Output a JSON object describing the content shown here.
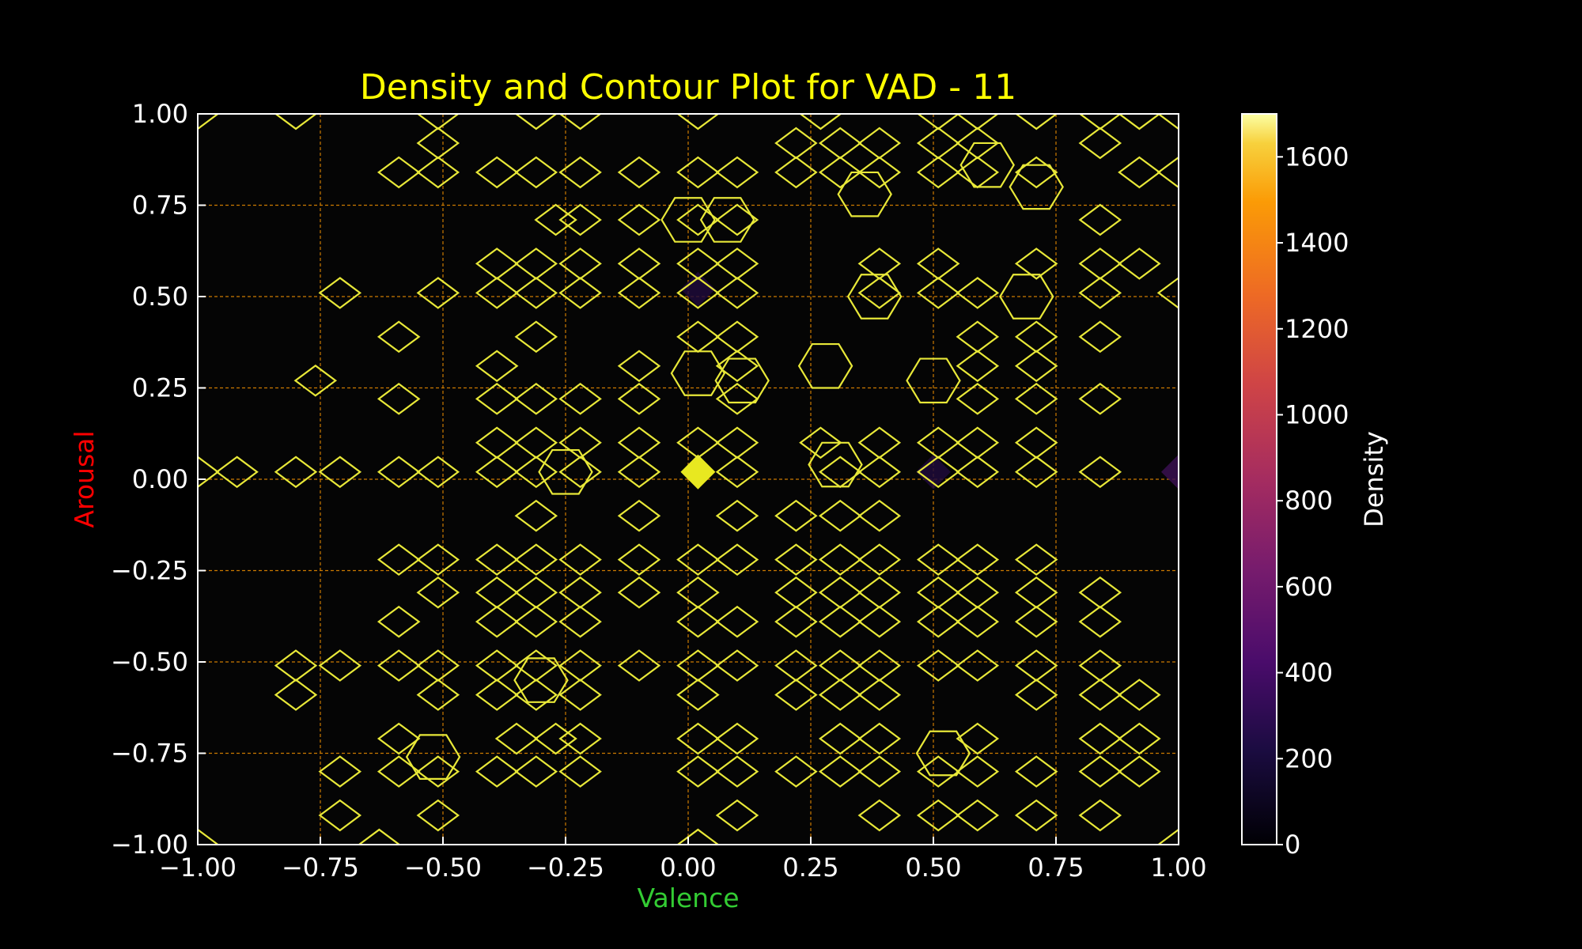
{
  "chart_data": {
    "type": "heatmap",
    "title": "Density and Contour Plot for VAD - 11",
    "xlabel": "Valence",
    "ylabel": "Arousal",
    "xlim": [
      -1.0,
      1.0
    ],
    "ylim": [
      -1.0,
      1.0
    ],
    "x_ticks": [
      "−1.00",
      "−0.75",
      "−0.50",
      "−0.25",
      "0.00",
      "0.25",
      "0.50",
      "0.75",
      "1.00"
    ],
    "y_ticks": [
      "−1.00",
      "−0.75",
      "−0.50",
      "−0.25",
      "0.00",
      "0.25",
      "0.50",
      "0.75",
      "1.00"
    ],
    "grid": true,
    "colorbar": {
      "label": "Density",
      "colormap": "inferno",
      "range": [
        0,
        1700
      ],
      "ticks": [
        "0",
        "200",
        "400",
        "600",
        "800",
        "1000",
        "1200",
        "1400",
        "1600"
      ]
    },
    "colors": {
      "background": "#000000",
      "title": "#ffff00",
      "xlabel": "#33cc33",
      "ylabel": "#ff0000",
      "grid": "#cc7a00",
      "contour": "#e8e838"
    },
    "density_peaks": [
      {
        "x": 0.02,
        "y": 0.02,
        "density": 1700
      },
      {
        "x": 1.0,
        "y": 0.02,
        "density": 520
      },
      {
        "x": 0.5,
        "y": 0.02,
        "density": 330
      },
      {
        "x": 0.02,
        "y": 0.52,
        "density": 300
      }
    ],
    "contour_cells": [
      [
        -1.0,
        -1.0
      ],
      [
        -0.63,
        -1.0
      ],
      [
        0.02,
        -1.0
      ],
      [
        1.0,
        -1.0
      ],
      [
        -0.71,
        -0.92
      ],
      [
        -0.51,
        -0.92
      ],
      [
        0.1,
        -0.92
      ],
      [
        0.39,
        -0.92
      ],
      [
        0.51,
        -0.92
      ],
      [
        0.59,
        -0.92
      ],
      [
        0.71,
        -0.92
      ],
      [
        0.84,
        -0.92
      ],
      [
        -0.71,
        -0.8
      ],
      [
        -0.59,
        -0.8
      ],
      [
        -0.51,
        -0.8
      ],
      [
        -0.39,
        -0.8
      ],
      [
        -0.31,
        -0.8
      ],
      [
        -0.22,
        -0.8
      ],
      [
        0.02,
        -0.8
      ],
      [
        0.1,
        -0.8
      ],
      [
        0.22,
        -0.8
      ],
      [
        0.31,
        -0.8
      ],
      [
        0.39,
        -0.8
      ],
      [
        0.51,
        -0.8
      ],
      [
        0.59,
        -0.8
      ],
      [
        0.71,
        -0.8
      ],
      [
        0.84,
        -0.8
      ],
      [
        0.92,
        -0.8
      ],
      [
        -0.59,
        -0.71
      ],
      [
        -0.35,
        -0.71
      ],
      [
        -0.27,
        -0.71
      ],
      [
        -0.22,
        -0.71
      ],
      [
        0.02,
        -0.71
      ],
      [
        0.1,
        -0.71
      ],
      [
        0.31,
        -0.71
      ],
      [
        0.39,
        -0.71
      ],
      [
        0.59,
        -0.71
      ],
      [
        0.84,
        -0.71
      ],
      [
        0.92,
        -0.71
      ],
      [
        -0.8,
        -0.59
      ],
      [
        -0.51,
        -0.59
      ],
      [
        -0.39,
        -0.59
      ],
      [
        -0.31,
        -0.59
      ],
      [
        -0.22,
        -0.59
      ],
      [
        0.02,
        -0.59
      ],
      [
        0.22,
        -0.59
      ],
      [
        0.31,
        -0.59
      ],
      [
        0.39,
        -0.59
      ],
      [
        0.71,
        -0.59
      ],
      [
        0.84,
        -0.59
      ],
      [
        0.92,
        -0.59
      ],
      [
        -0.8,
        -0.51
      ],
      [
        -0.71,
        -0.51
      ],
      [
        -0.59,
        -0.51
      ],
      [
        -0.51,
        -0.51
      ],
      [
        -0.39,
        -0.51
      ],
      [
        -0.31,
        -0.51
      ],
      [
        -0.22,
        -0.51
      ],
      [
        -0.1,
        -0.51
      ],
      [
        0.02,
        -0.51
      ],
      [
        0.1,
        -0.51
      ],
      [
        0.22,
        -0.51
      ],
      [
        0.31,
        -0.51
      ],
      [
        0.39,
        -0.51
      ],
      [
        0.51,
        -0.51
      ],
      [
        0.59,
        -0.51
      ],
      [
        0.71,
        -0.51
      ],
      [
        0.84,
        -0.51
      ],
      [
        -0.59,
        -0.39
      ],
      [
        -0.39,
        -0.39
      ],
      [
        -0.31,
        -0.39
      ],
      [
        -0.22,
        -0.39
      ],
      [
        0.02,
        -0.39
      ],
      [
        0.1,
        -0.39
      ],
      [
        0.22,
        -0.39
      ],
      [
        0.31,
        -0.39
      ],
      [
        0.39,
        -0.39
      ],
      [
        0.51,
        -0.39
      ],
      [
        0.59,
        -0.39
      ],
      [
        0.71,
        -0.39
      ],
      [
        0.84,
        -0.39
      ],
      [
        -0.51,
        -0.31
      ],
      [
        -0.39,
        -0.31
      ],
      [
        -0.31,
        -0.31
      ],
      [
        -0.22,
        -0.31
      ],
      [
        -0.1,
        -0.31
      ],
      [
        0.02,
        -0.31
      ],
      [
        0.22,
        -0.31
      ],
      [
        0.31,
        -0.31
      ],
      [
        0.39,
        -0.31
      ],
      [
        0.51,
        -0.31
      ],
      [
        0.59,
        -0.31
      ],
      [
        0.71,
        -0.31
      ],
      [
        0.84,
        -0.31
      ],
      [
        -0.59,
        -0.22
      ],
      [
        -0.51,
        -0.22
      ],
      [
        -0.39,
        -0.22
      ],
      [
        -0.31,
        -0.22
      ],
      [
        -0.22,
        -0.22
      ],
      [
        -0.1,
        -0.22
      ],
      [
        0.02,
        -0.22
      ],
      [
        0.1,
        -0.22
      ],
      [
        0.22,
        -0.22
      ],
      [
        0.31,
        -0.22
      ],
      [
        0.39,
        -0.22
      ],
      [
        0.51,
        -0.22
      ],
      [
        0.59,
        -0.22
      ],
      [
        0.71,
        -0.22
      ],
      [
        -0.31,
        -0.1
      ],
      [
        -0.1,
        -0.1
      ],
      [
        0.1,
        -0.1
      ],
      [
        0.22,
        -0.1
      ],
      [
        0.31,
        -0.1
      ],
      [
        0.39,
        -0.1
      ],
      [
        -1.0,
        0.02
      ],
      [
        -0.92,
        0.02
      ],
      [
        -0.8,
        0.02
      ],
      [
        -0.71,
        0.02
      ],
      [
        -0.59,
        0.02
      ],
      [
        -0.51,
        0.02
      ],
      [
        -0.39,
        0.02
      ],
      [
        -0.31,
        0.02
      ],
      [
        -0.22,
        0.02
      ],
      [
        -0.1,
        0.02
      ],
      [
        0.1,
        0.02
      ],
      [
        0.31,
        0.02
      ],
      [
        0.39,
        0.02
      ],
      [
        0.51,
        0.02
      ],
      [
        0.59,
        0.02
      ],
      [
        0.71,
        0.02
      ],
      [
        0.84,
        0.02
      ],
      [
        -0.39,
        0.1
      ],
      [
        -0.31,
        0.1
      ],
      [
        -0.22,
        0.1
      ],
      [
        -0.1,
        0.1
      ],
      [
        0.02,
        0.1
      ],
      [
        0.1,
        0.1
      ],
      [
        0.27,
        0.1
      ],
      [
        0.39,
        0.1
      ],
      [
        0.51,
        0.1
      ],
      [
        0.59,
        0.1
      ],
      [
        0.71,
        0.1
      ],
      [
        -0.59,
        0.22
      ],
      [
        -0.39,
        0.22
      ],
      [
        -0.31,
        0.22
      ],
      [
        -0.22,
        0.22
      ],
      [
        -0.1,
        0.22
      ],
      [
        0.1,
        0.22
      ],
      [
        0.59,
        0.22
      ],
      [
        0.71,
        0.22
      ],
      [
        0.84,
        0.22
      ],
      [
        -0.76,
        0.27
      ],
      [
        -0.39,
        0.31
      ],
      [
        -0.1,
        0.31
      ],
      [
        0.1,
        0.31
      ],
      [
        0.59,
        0.31
      ],
      [
        0.71,
        0.31
      ],
      [
        -0.59,
        0.39
      ],
      [
        -0.31,
        0.39
      ],
      [
        0.02,
        0.39
      ],
      [
        0.1,
        0.39
      ],
      [
        0.59,
        0.39
      ],
      [
        0.71,
        0.39
      ],
      [
        0.84,
        0.39
      ],
      [
        -0.71,
        0.51
      ],
      [
        -0.51,
        0.51
      ],
      [
        -0.39,
        0.51
      ],
      [
        -0.31,
        0.51
      ],
      [
        -0.22,
        0.51
      ],
      [
        -0.1,
        0.51
      ],
      [
        0.02,
        0.51
      ],
      [
        0.1,
        0.51
      ],
      [
        0.39,
        0.51
      ],
      [
        0.51,
        0.51
      ],
      [
        0.59,
        0.51
      ],
      [
        0.84,
        0.51
      ],
      [
        1.0,
        0.51
      ],
      [
        -0.39,
        0.59
      ],
      [
        -0.31,
        0.59
      ],
      [
        -0.22,
        0.59
      ],
      [
        -0.1,
        0.59
      ],
      [
        0.02,
        0.59
      ],
      [
        0.1,
        0.59
      ],
      [
        0.39,
        0.59
      ],
      [
        0.51,
        0.59
      ],
      [
        0.71,
        0.59
      ],
      [
        0.84,
        0.59
      ],
      [
        0.92,
        0.59
      ],
      [
        -0.27,
        0.71
      ],
      [
        -0.22,
        0.71
      ],
      [
        -0.1,
        0.71
      ],
      [
        0.02,
        0.71
      ],
      [
        0.1,
        0.71
      ],
      [
        0.84,
        0.71
      ],
      [
        -0.59,
        0.84
      ],
      [
        -0.51,
        0.84
      ],
      [
        -0.39,
        0.84
      ],
      [
        -0.31,
        0.84
      ],
      [
        -0.22,
        0.84
      ],
      [
        -0.1,
        0.84
      ],
      [
        0.02,
        0.84
      ],
      [
        0.1,
        0.84
      ],
      [
        0.22,
        0.84
      ],
      [
        0.31,
        0.84
      ],
      [
        0.39,
        0.84
      ],
      [
        0.51,
        0.84
      ],
      [
        0.59,
        0.84
      ],
      [
        0.71,
        0.84
      ],
      [
        0.92,
        0.84
      ],
      [
        1.0,
        0.84
      ],
      [
        -0.51,
        0.92
      ],
      [
        0.22,
        0.92
      ],
      [
        0.31,
        0.92
      ],
      [
        0.39,
        0.92
      ],
      [
        0.51,
        0.92
      ],
      [
        0.59,
        0.92
      ],
      [
        0.84,
        0.92
      ],
      [
        -1.0,
        1.0
      ],
      [
        -0.8,
        1.0
      ],
      [
        -0.51,
        1.0
      ],
      [
        -0.31,
        1.0
      ],
      [
        -0.22,
        1.0
      ],
      [
        0.02,
        1.0
      ],
      [
        0.27,
        1.0
      ],
      [
        0.51,
        1.0
      ],
      [
        0.59,
        1.0
      ],
      [
        0.71,
        1.0
      ],
      [
        0.84,
        1.0
      ],
      [
        0.92,
        1.0
      ],
      [
        1.0,
        1.0
      ]
    ],
    "contour_rings": [
      [
        0.0,
        0.71
      ],
      [
        0.08,
        0.71
      ],
      [
        0.38,
        0.5
      ],
      [
        0.36,
        0.78
      ],
      [
        0.28,
        0.31
      ],
      [
        0.5,
        0.27
      ],
      [
        0.71,
        0.8
      ],
      [
        0.61,
        0.86
      ],
      [
        0.69,
        0.5
      ],
      [
        0.52,
        -0.75
      ],
      [
        -0.52,
        -0.76
      ],
      [
        0.02,
        0.29
      ],
      [
        0.11,
        0.27
      ],
      [
        -0.25,
        0.02
      ],
      [
        0.3,
        0.04
      ],
      [
        -0.3,
        -0.55
      ]
    ]
  }
}
